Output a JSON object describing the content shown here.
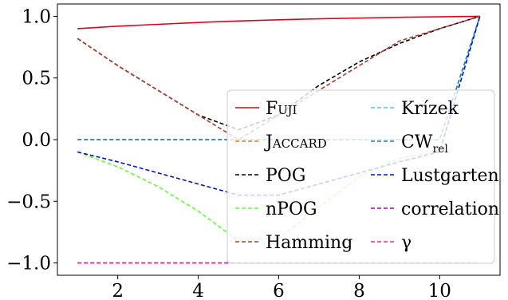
{
  "chart_data": {
    "type": "line",
    "title": "",
    "xlabel": "",
    "ylabel": "",
    "xlim": [
      0.5,
      11.5
    ],
    "ylim": [
      -1.1,
      1.1
    ],
    "x_ticks": [
      2,
      4,
      6,
      8,
      10
    ],
    "x_tick_labels": [
      "2",
      "4",
      "6",
      "8",
      "10"
    ],
    "y_ticks": [
      -1.0,
      -0.5,
      0.0,
      0.5,
      1.0
    ],
    "y_tick_labels": [
      "−1.0",
      "−0.5",
      "0.0",
      "0.5",
      "1.0"
    ],
    "grid": false,
    "legend_position": "lower-right",
    "x": [
      1,
      2,
      3,
      4,
      5,
      6,
      7,
      8,
      9,
      10,
      11
    ],
    "series": [
      {
        "name": "Fuji",
        "color": "#e6001a",
        "dash": "solid",
        "smallcaps": true,
        "values": [
          0.9,
          0.92,
          0.935,
          0.95,
          0.962,
          0.972,
          0.98,
          0.986,
          0.992,
          0.996,
          1.0
        ]
      },
      {
        "name": "Jaccard",
        "color": "#e8731c",
        "dash": "dashed",
        "smallcaps": true,
        "values": [
          0.0,
          0.0,
          0.0,
          0.0,
          0.0,
          0.0,
          0.0,
          0.0,
          0.0,
          0.0,
          1.0
        ]
      },
      {
        "name": "POG",
        "color": "#000000",
        "dash": "dashed",
        "values": [
          0.82,
          0.6,
          0.4,
          0.2,
          0.08,
          0.2,
          0.44,
          0.63,
          0.78,
          0.9,
          1.0
        ]
      },
      {
        "name": "nPOG",
        "color": "#66ff33",
        "dash": "dashed",
        "values": [
          -0.1,
          -0.22,
          -0.38,
          -0.58,
          -0.82,
          -0.8,
          -0.55,
          -0.3,
          -0.15,
          -0.1,
          1.0
        ]
      },
      {
        "name": "Hamming",
        "color": "#b03a2e",
        "dash": "dashed",
        "values": [
          0.82,
          0.6,
          0.4,
          0.2,
          0.0,
          0.2,
          0.4,
          0.6,
          0.8,
          0.9,
          1.0
        ]
      },
      {
        "name": "Krízek",
        "color": "#33dde0",
        "dash": "dashed",
        "values": [
          0.0,
          0.0,
          0.0,
          0.0,
          0.0,
          0.0,
          0.0,
          0.0,
          0.0,
          0.0,
          1.0
        ]
      },
      {
        "name": "CW",
        "subscript": "rel",
        "color": "#1a80cc",
        "dash": "dashed",
        "values": [
          0.0,
          0.0,
          0.0,
          0.0,
          0.0,
          0.0,
          0.0,
          0.0,
          0.0,
          0.0,
          1.0
        ]
      },
      {
        "name": "Lustgarten",
        "color": "#0011cc",
        "dash": "dashed",
        "values": [
          -0.1,
          -0.18,
          -0.27,
          -0.36,
          -0.45,
          -0.45,
          -0.36,
          -0.27,
          -0.18,
          -0.1,
          1.0
        ]
      },
      {
        "name": "correlation",
        "color": "#b300cc",
        "dash": "dashed",
        "values": [
          -1.0,
          -1.0,
          -1.0,
          -1.0,
          -1.0,
          -1.0,
          -1.0,
          -1.0,
          -1.0,
          -1.0,
          -1.0
        ]
      },
      {
        "name": "γ",
        "color": "#ff1aa8",
        "dash": "dashed",
        "values": [
          -1.0,
          -1.0,
          -1.0,
          -1.0,
          -1.0,
          -1.0,
          -1.0,
          -1.0,
          -1.0,
          -1.0,
          -1.0
        ]
      }
    ]
  }
}
